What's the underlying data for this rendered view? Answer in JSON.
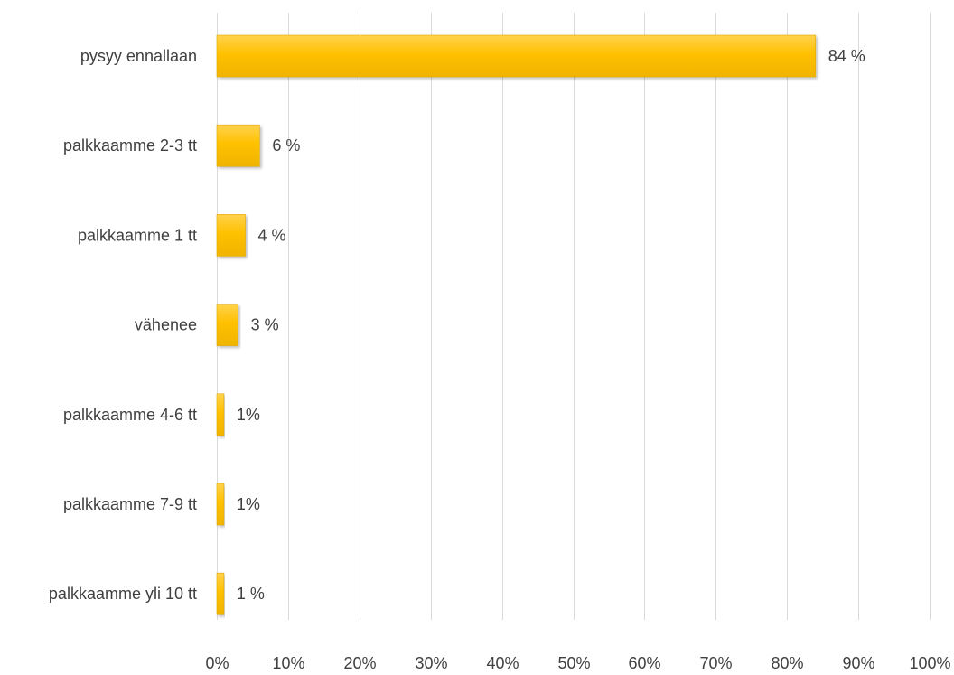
{
  "chart_data": {
    "type": "bar",
    "orientation": "horizontal",
    "categories": [
      "pysyy ennallaan",
      "palkkaamme 2-3 tt",
      "palkkaamme 1 tt",
      "vähenee",
      "palkkaamme 4-6 tt",
      "palkkaamme 7-9 tt",
      "palkkaamme yli 10 tt"
    ],
    "values": [
      84,
      6,
      4,
      3,
      1,
      1,
      1
    ],
    "data_labels": [
      "84 %",
      "6 %",
      "4 %",
      "3 %",
      "1%",
      "1%",
      "1 %"
    ],
    "x_ticks": [
      "0%",
      "10%",
      "20%",
      "30%",
      "40%",
      "50%",
      "60%",
      "70%",
      "80%",
      "90%",
      "100%"
    ],
    "xlim": [
      0,
      100
    ],
    "grid": true,
    "legend": "none",
    "title": "",
    "xlabel": "",
    "ylabel": "",
    "colors": {
      "bar": "#ffc000",
      "bar_light": "#ffd966",
      "bar_dark": "#e6ac00",
      "text": "#404040",
      "grid": "#d9d9d9"
    }
  }
}
